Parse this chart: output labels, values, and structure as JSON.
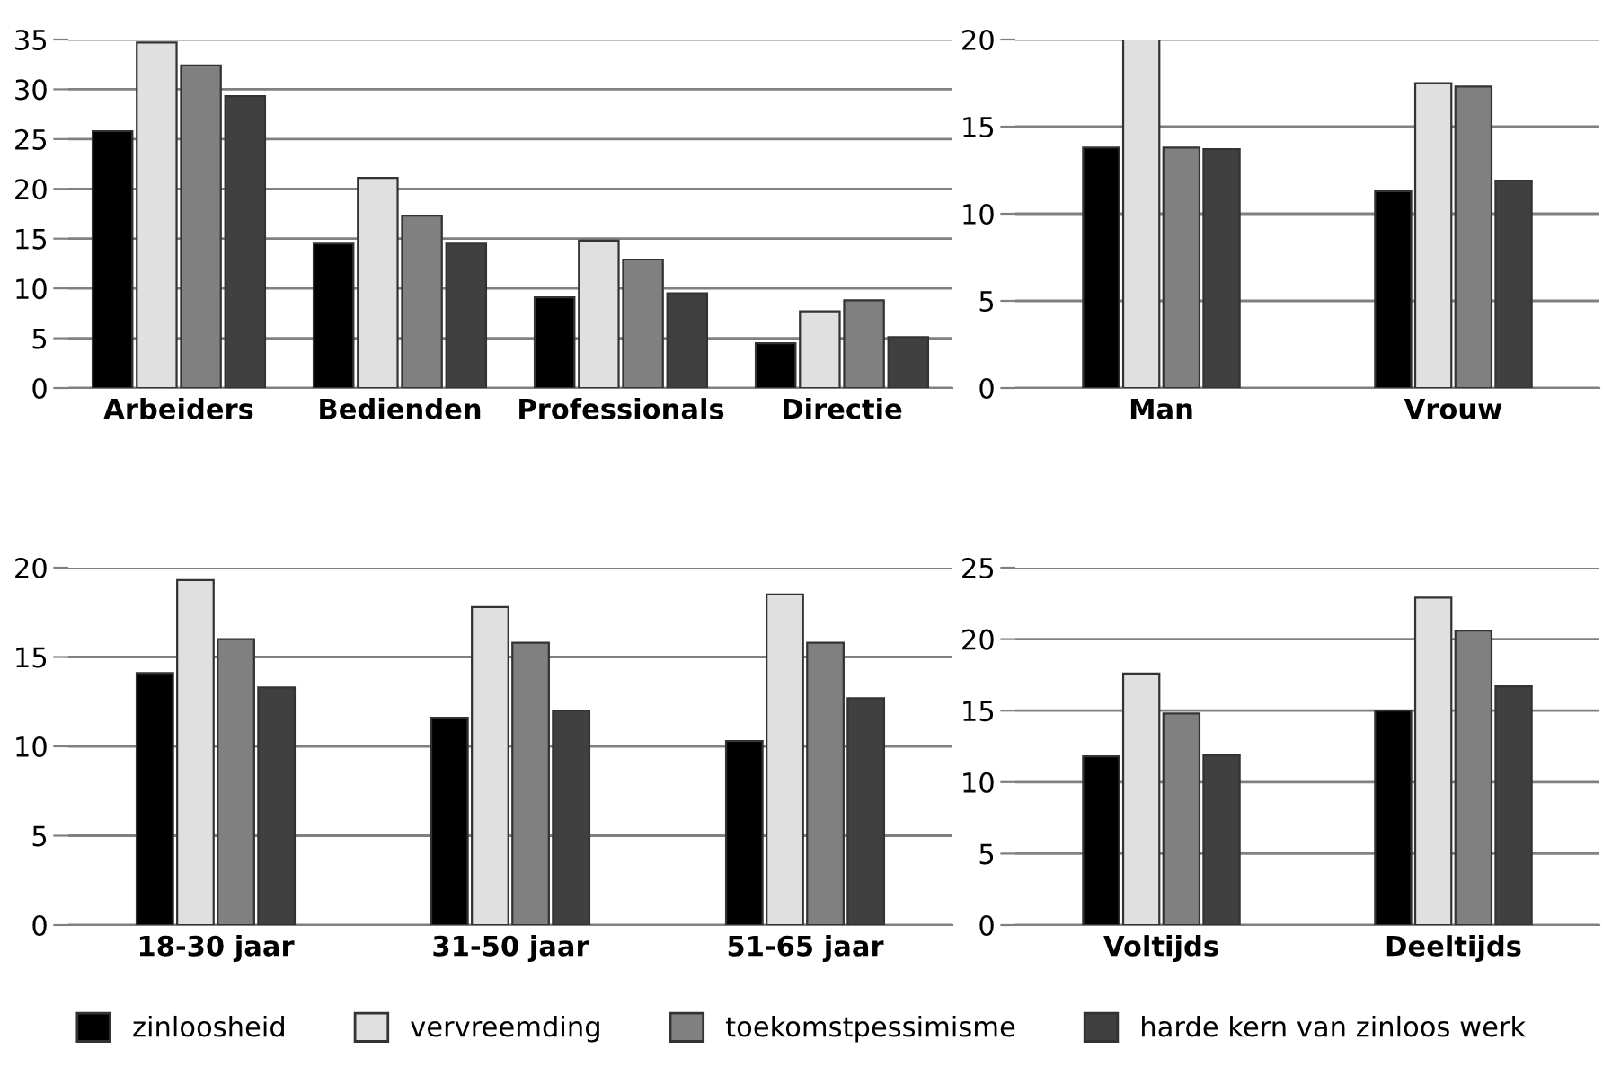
{
  "chart_data": [
    {
      "type": "bar",
      "categories": [
        "Arbeiders",
        "Bedienden",
        "Professionals",
        "Directie"
      ],
      "ylim": [
        0,
        35
      ],
      "yticks": [
        0,
        5,
        10,
        15,
        20,
        25,
        30,
        35
      ],
      "grid": "y",
      "legend": "bottom",
      "series": [
        {
          "name": "zinloosheid",
          "color": "#000000",
          "values": [
            25.8,
            14.5,
            9.1,
            4.5
          ]
        },
        {
          "name": "vervreemding",
          "color": "#e0e0e0",
          "values": [
            34.7,
            21.1,
            14.8,
            7.7
          ]
        },
        {
          "name": "toekomstpessimisme",
          "color": "#808080",
          "values": [
            32.4,
            17.3,
            12.9,
            8.8
          ]
        },
        {
          "name": "harde kern van zinloos werk",
          "color": "#404040",
          "values": [
            29.3,
            14.5,
            9.5,
            5.1
          ]
        }
      ]
    },
    {
      "type": "bar",
      "categories": [
        "Man",
        "Vrouw"
      ],
      "ylim": [
        0,
        20
      ],
      "yticks": [
        0,
        5,
        10,
        15,
        20
      ],
      "grid": "y",
      "series": [
        {
          "color": "#000000",
          "values": [
            13.8,
            11.3
          ]
        },
        {
          "color": "#e0e0e0",
          "values": [
            20,
            17.5
          ]
        },
        {
          "color": "#808080",
          "values": [
            13.8,
            17.3
          ]
        },
        {
          "color": "#404040",
          "values": [
            13.7,
            11.9
          ]
        }
      ]
    },
    {
      "type": "bar",
      "categories": [
        "18-30 jaar",
        "31-50 jaar",
        "51-65 jaar"
      ],
      "ylim": [
        0,
        20
      ],
      "yticks": [
        0,
        5,
        10,
        15,
        20
      ],
      "grid": "y",
      "series": [
        {
          "color": "#000000",
          "values": [
            14.1,
            11.6,
            10.3
          ]
        },
        {
          "color": "#e0e0e0",
          "values": [
            19.3,
            17.8,
            18.5
          ]
        },
        {
          "color": "#808080",
          "values": [
            16.0,
            15.8,
            15.8
          ]
        },
        {
          "color": "#404040",
          "values": [
            13.3,
            12.0,
            12.7
          ]
        }
      ]
    },
    {
      "type": "bar",
      "categories": [
        "Voltijds",
        "Deeltijds"
      ],
      "ylim": [
        0,
        25
      ],
      "yticks": [
        0,
        5,
        10,
        15,
        20,
        25
      ],
      "grid": "y",
      "series": [
        {
          "color": "#000000",
          "values": [
            11.8,
            15.0
          ]
        },
        {
          "color": "#e0e0e0",
          "values": [
            17.6,
            22.9
          ]
        },
        {
          "color": "#808080",
          "values": [
            14.8,
            20.6
          ]
        },
        {
          "color": "#404040",
          "values": [
            11.9,
            16.7
          ]
        }
      ]
    }
  ]
}
